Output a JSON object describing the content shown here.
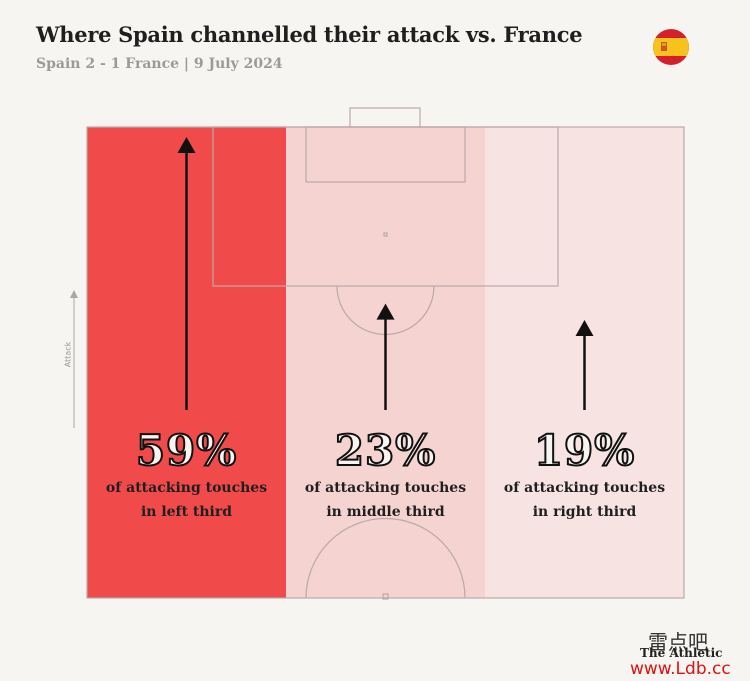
{
  "header": {
    "title": "Where Spain channelled their attack vs. France",
    "subtitle": "Spain 2 - 1 France | 9 July 2024"
  },
  "axis": {
    "attack_label": "Attack"
  },
  "colors": {
    "left": "#f04a4a",
    "middle": "#f5d3d1",
    "right": "#f7e4e2",
    "lines": "#b9a9a9",
    "arrow": "#111111"
  },
  "chart_data": {
    "type": "bar",
    "title": "Where Spain channelled their attack vs. France",
    "subtitle": "Spain 2 - 1 France | 9 July 2024",
    "categories": [
      "left third",
      "middle third",
      "right third"
    ],
    "values": [
      59,
      23,
      19
    ],
    "unit": "%",
    "series": [
      {
        "values": [
          59,
          23,
          19
        ]
      }
    ],
    "labels": [
      {
        "pct": "59%",
        "line1": "of attacking touches",
        "line2": "in left third"
      },
      {
        "pct": "23%",
        "line1": "of attacking touches",
        "line2": "in middle third"
      },
      {
        "pct": "19%",
        "line1": "of attacking touches",
        "line2": "in right third"
      }
    ]
  },
  "footer": {
    "brand": "The Athletic",
    "watermark_cn": "雷点吧",
    "watermark_url": "www.Ldb.cc"
  }
}
